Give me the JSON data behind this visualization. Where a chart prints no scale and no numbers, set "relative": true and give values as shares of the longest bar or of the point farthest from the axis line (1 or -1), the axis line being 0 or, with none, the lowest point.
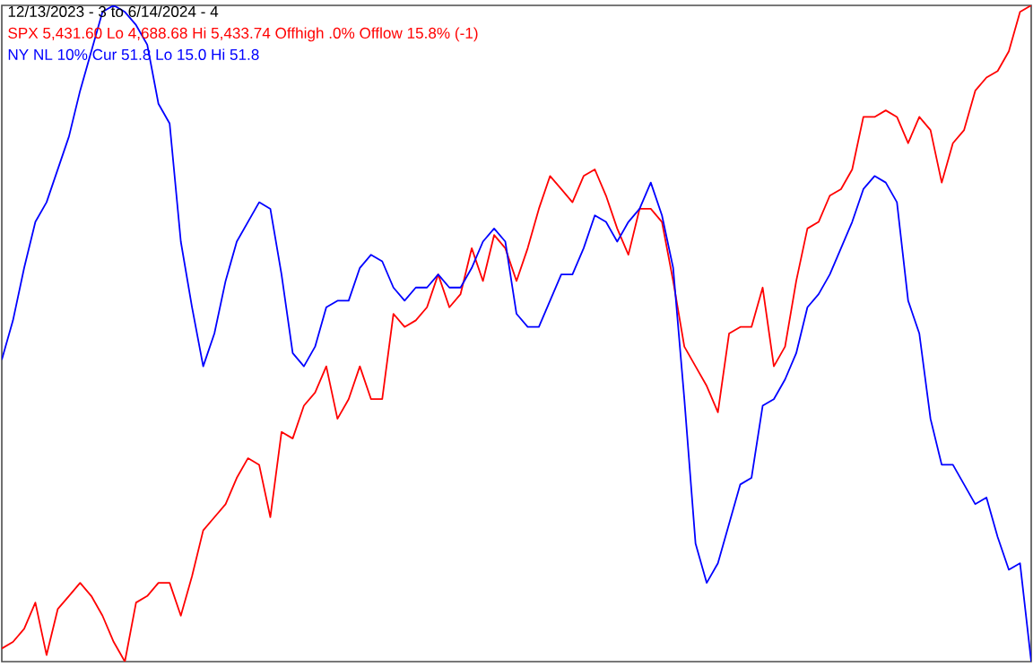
{
  "chart_data": {
    "type": "line",
    "title": "12/13/2023 - 3 to 6/14/2024 - 4",
    "relative": true,
    "categories": [
      null,
      null,
      null,
      null,
      null,
      null,
      null,
      null,
      null,
      null,
      null,
      null,
      null,
      null,
      null,
      null,
      null,
      null,
      null,
      null,
      null,
      null,
      null,
      null,
      null,
      null,
      null,
      null,
      null,
      null,
      null,
      null,
      null,
      null,
      null,
      null,
      null,
      null,
      null,
      null,
      null,
      null,
      null,
      null,
      null,
      null,
      null,
      null,
      null,
      null,
      null,
      null,
      null,
      null,
      null,
      null,
      null,
      null,
      null,
      null,
      null,
      null,
      null,
      null,
      null,
      null,
      null,
      null,
      null,
      null,
      null,
      null,
      null,
      null,
      null,
      null,
      null,
      null,
      null,
      null,
      null,
      null,
      null,
      null,
      null,
      null,
      null,
      null,
      null,
      null,
      null,
      null,
      null
    ],
    "series": [
      {
        "name": "SPX 5,431.60 Lo 4,688.68 Hi 5,433.74 Offhigh .0% Offlow 15.8% (-1)",
        "color": "#ff0000",
        "values": [
          0.02,
          0.03,
          0.05,
          0.09,
          0.01,
          0.08,
          0.1,
          0.12,
          0.1,
          0.07,
          0.03,
          0.0,
          0.09,
          0.1,
          0.12,
          0.12,
          0.07,
          0.13,
          0.2,
          0.22,
          0.24,
          0.28,
          0.31,
          0.3,
          0.22,
          0.35,
          0.34,
          0.39,
          0.41,
          0.45,
          0.37,
          0.4,
          0.45,
          0.4,
          0.4,
          0.53,
          0.51,
          0.52,
          0.54,
          0.59,
          0.54,
          0.56,
          0.63,
          0.58,
          0.65,
          0.63,
          0.58,
          0.63,
          0.69,
          0.74,
          0.72,
          0.7,
          0.74,
          0.75,
          0.71,
          0.66,
          0.62,
          0.69,
          0.69,
          0.67,
          0.58,
          0.48,
          0.45,
          0.42,
          0.38,
          0.5,
          0.51,
          0.51,
          0.57,
          0.45,
          0.48,
          0.58,
          0.66,
          0.67,
          0.71,
          0.72,
          0.75,
          0.83,
          0.83,
          0.84,
          0.83,
          0.79,
          0.83,
          0.81,
          0.73,
          0.79,
          0.81,
          0.87,
          0.89,
          0.9,
          0.93,
          0.99,
          1.0
        ]
      },
      {
        "name": "NY NL 10% Cur 51.8 Lo 15.0 Hi 51.8",
        "color": "#0000ff",
        "values": [
          0.46,
          0.52,
          0.6,
          0.67,
          0.7,
          0.75,
          0.8,
          0.87,
          0.93,
          0.99,
          1.0,
          0.99,
          0.97,
          0.94,
          0.85,
          0.82,
          0.64,
          0.54,
          0.45,
          0.5,
          0.58,
          0.64,
          0.67,
          0.7,
          0.69,
          0.59,
          0.47,
          0.45,
          0.48,
          0.54,
          0.55,
          0.55,
          0.6,
          0.62,
          0.61,
          0.57,
          0.55,
          0.57,
          0.57,
          0.59,
          0.57,
          0.57,
          0.6,
          0.64,
          0.66,
          0.64,
          0.53,
          0.51,
          0.51,
          0.55,
          0.59,
          0.59,
          0.63,
          0.68,
          0.67,
          0.64,
          0.67,
          0.69,
          0.73,
          0.68,
          0.6,
          0.4,
          0.18,
          0.12,
          0.15,
          0.21,
          0.27,
          0.28,
          0.39,
          0.4,
          0.43,
          0.47,
          0.54,
          0.56,
          0.59,
          0.63,
          0.67,
          0.72,
          0.74,
          0.73,
          0.7,
          0.55,
          0.5,
          0.37,
          0.3,
          0.3,
          0.27,
          0.24,
          0.25,
          0.19,
          0.14,
          0.15,
          0.0
        ]
      }
    ]
  }
}
